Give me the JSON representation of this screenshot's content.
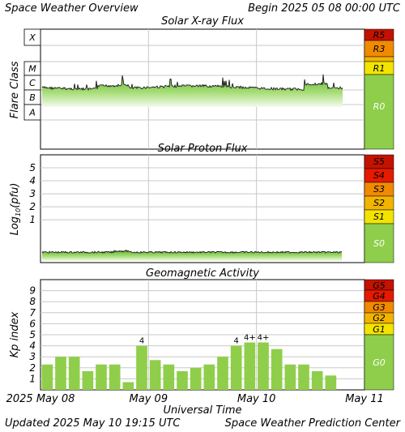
{
  "header": {
    "title": "Space Weather Overview",
    "begin": "Begin 2025 05 08 00:00 UTC"
  },
  "footer": {
    "updated": "Updated 2025 May 10 19:15 UTC",
    "center": "Space Weather Prediction Center",
    "xlabel": "Universal Time"
  },
  "colors": {
    "grey": "#c8c8c8",
    "quiet_green": "#8fce4a",
    "bar_green": "#8fce4a",
    "s1_yellow": "#f2e400",
    "s2_gold": "#f2b400",
    "s3_orange": "#f08a00",
    "s4_red": "#e51a00",
    "s5_darkred": "#c41200"
  },
  "chart_data": [
    {
      "type": "area",
      "title": "Solar X-ray Flux",
      "ylabel": "Flare Class",
      "x_ticks": [
        "2025 May 08",
        "May 09",
        "May 10",
        "May 11"
      ],
      "y_scale": "log",
      "y_class_labels": [
        "X",
        "M",
        "C",
        "B",
        "A"
      ],
      "baseline_class_range": [
        "B",
        "C"
      ],
      "peaks_class": "C",
      "scale_labels": [
        "R5",
        "R3",
        "R1",
        "R0"
      ],
      "grid": true
    },
    {
      "type": "area",
      "title": "Solar Proton Flux",
      "ylabel": "Log10(pfu)",
      "ylabel_parts": [
        "Log",
        "10",
        "(pfu)"
      ],
      "y_ticks": [
        "1",
        "2",
        "3",
        "4",
        "5"
      ],
      "ylim": [
        -2.3,
        6
      ],
      "baseline_log_pfu": -1.5,
      "scale_labels": [
        "S5",
        "S4",
        "S3",
        "S2",
        "S1",
        "S0"
      ],
      "grid": true
    },
    {
      "type": "bar",
      "title": "Geomagnetic Activity",
      "ylabel": "Kp index",
      "y_ticks": [
        "1",
        "2",
        "3",
        "4",
        "5",
        "6",
        "7",
        "8",
        "9"
      ],
      "ylim": [
        0,
        10
      ],
      "values": [
        2.3,
        3.0,
        3.0,
        1.7,
        2.3,
        2.3,
        0.7,
        4.0,
        2.7,
        2.3,
        1.7,
        2.0,
        2.3,
        3.0,
        4.0,
        4.3,
        4.3,
        3.7,
        2.3,
        2.3,
        1.7,
        1.3
      ],
      "bar_labels": {
        "7": "4",
        "14": "4",
        "15": "4+",
        "16": "4+"
      },
      "scale_labels": [
        "G5",
        "G4",
        "G3",
        "G2",
        "G1",
        "G0"
      ],
      "grid": true
    }
  ]
}
